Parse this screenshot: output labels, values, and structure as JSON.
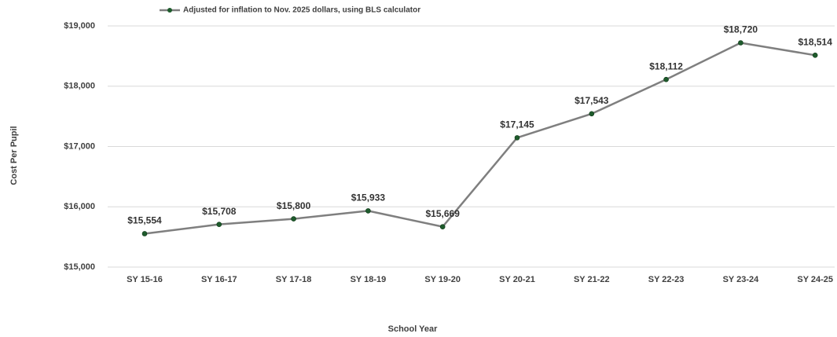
{
  "chart_data": {
    "type": "line",
    "x_label": "School Year",
    "y_label": "Cost Per Pupil",
    "categories": [
      "SY 15-16",
      "SY 16-17",
      "SY 17-18",
      "SY 18-19",
      "SY 19-20",
      "SY 20-21",
      "SY 21-22",
      "SY 22-23",
      "SY 23-24",
      "SY 24-25"
    ],
    "series": [
      {
        "name": "Adjusted for inflation to Nov. 2025 dollars, using BLS calculator",
        "color": "#7f7f7f",
        "marker_color": "#1e5b2c",
        "values": [
          15554,
          15708,
          15800,
          15933,
          15669,
          17145,
          17543,
          18112,
          18720,
          18514
        ],
        "value_labels": [
          "$15,554",
          "$15,708",
          "$15,800",
          "$15,933",
          "$15,669",
          "$17,145",
          "$17,543",
          "$18,112",
          "$18,720",
          "$18,514"
        ]
      }
    ],
    "ylim": [
      15000,
      19000
    ],
    "yticks": [
      {
        "value": 15000,
        "label": "$15,000"
      },
      {
        "value": 16000,
        "label": "$16,000"
      },
      {
        "value": 17000,
        "label": "$17,000"
      },
      {
        "value": 18000,
        "label": "$18,000"
      },
      {
        "value": 19000,
        "label": "$19,000"
      }
    ],
    "grid": true,
    "legend": "top"
  }
}
